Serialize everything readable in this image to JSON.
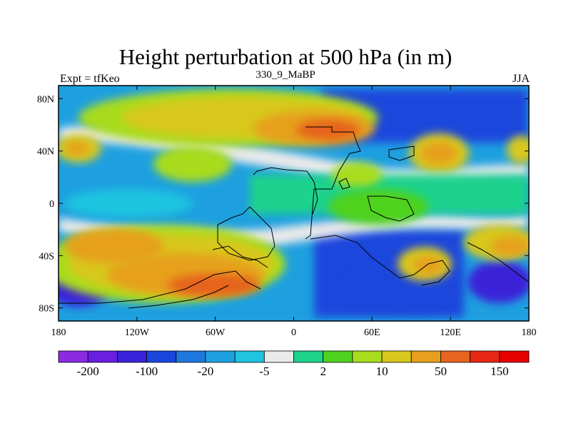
{
  "title": "Height perturbation at 500 hPa (in m)",
  "subtitle_left": "Expt = tfKeo",
  "subtitle_center": "330_9_MaBP",
  "subtitle_right": "JJA",
  "map": {
    "lon_ticks": [
      "180",
      "120W",
      "60W",
      "0",
      "60E",
      "120E",
      "180"
    ],
    "lat_ticks": [
      "80N",
      "40N",
      "0",
      "40S",
      "80S"
    ]
  },
  "colorbar": {
    "colors": [
      "#8a2be2",
      "#6a1ee0",
      "#3a22d8",
      "#1a46dc",
      "#1e78e0",
      "#1ea0e0",
      "#1ec4e0",
      "#eaeaea",
      "#1ed28c",
      "#50d21e",
      "#a8dc1e",
      "#d8c81e",
      "#e6a01e",
      "#e6641e",
      "#e62814",
      "#e60000"
    ],
    "labels": [
      "-200",
      "-100",
      "-20",
      "-5",
      "2",
      "10",
      "50",
      "150"
    ]
  }
}
